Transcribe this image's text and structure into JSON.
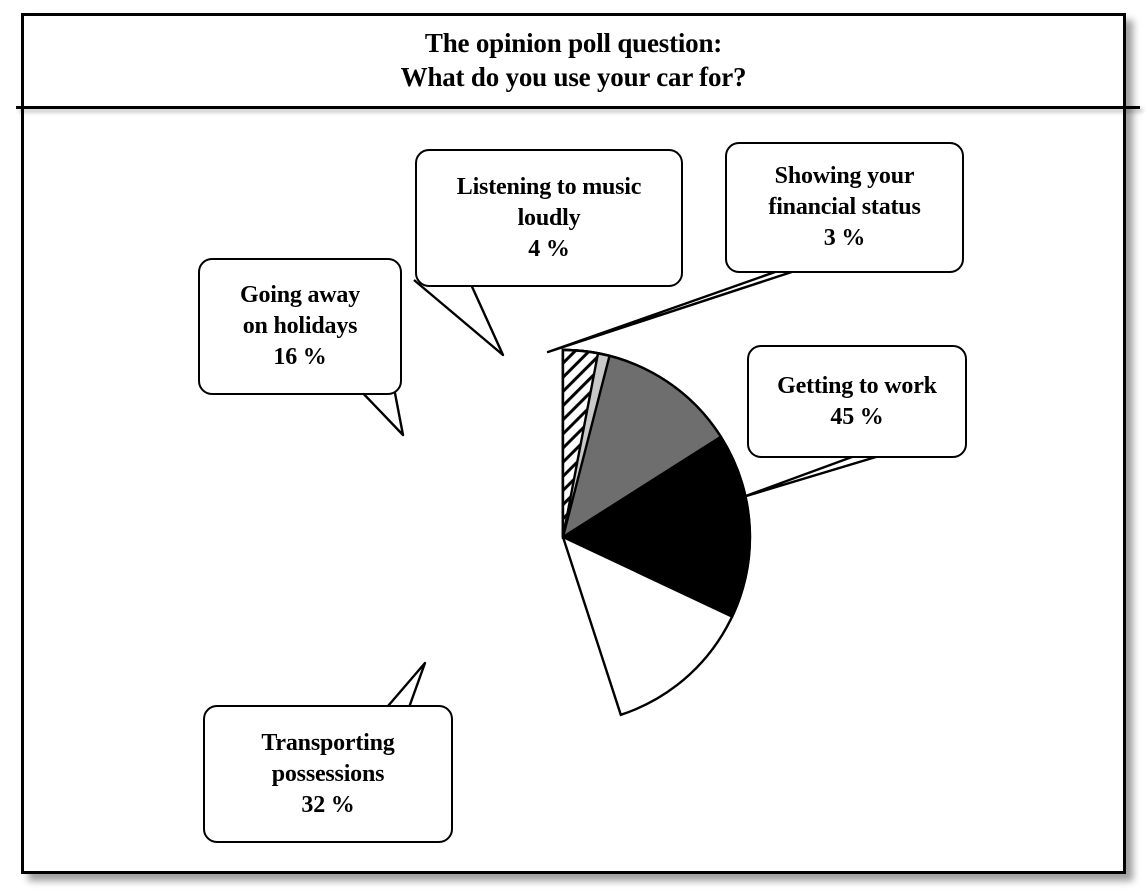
{
  "title": {
    "line1": "The opinion poll question:",
    "line2": "What do you use your car for?"
  },
  "chart_data": {
    "type": "pie",
    "title": "The opinion poll question: What do you use your car for?",
    "unit": "%",
    "start_angle_deg": 0,
    "direction": "clockwise",
    "stroke": "#000000",
    "labels_style": "callout-boxes",
    "slices": [
      {
        "label": "Getting to work",
        "value": 45,
        "fill": "#ffffff",
        "pattern": "solid"
      },
      {
        "label": "Transporting possessions",
        "value": 32,
        "fill": "#000000",
        "pattern": "solid"
      },
      {
        "label": "Going away on holidays",
        "value": 16,
        "fill": "#6e6e6e",
        "pattern": "solid"
      },
      {
        "label": "Listening to music loudly",
        "value": 4,
        "fill": "#c8c8c8",
        "pattern": "solid"
      },
      {
        "label": "Showing your financial status",
        "value": 3,
        "fill": "#ffffff",
        "pattern": "diagonal-hatch-lines"
      }
    ]
  },
  "callouts": {
    "listening": {
      "text": "Listening to music\nloudly\n4 %"
    },
    "showing": {
      "text": "Showing your\nfinancial status\n3 %"
    },
    "going": {
      "text": "Going away\non holidays\n16 %"
    },
    "getting": {
      "text": "Getting to work\n45 %"
    },
    "transporting": {
      "text": "Transporting\npossessions\n32 %"
    }
  }
}
